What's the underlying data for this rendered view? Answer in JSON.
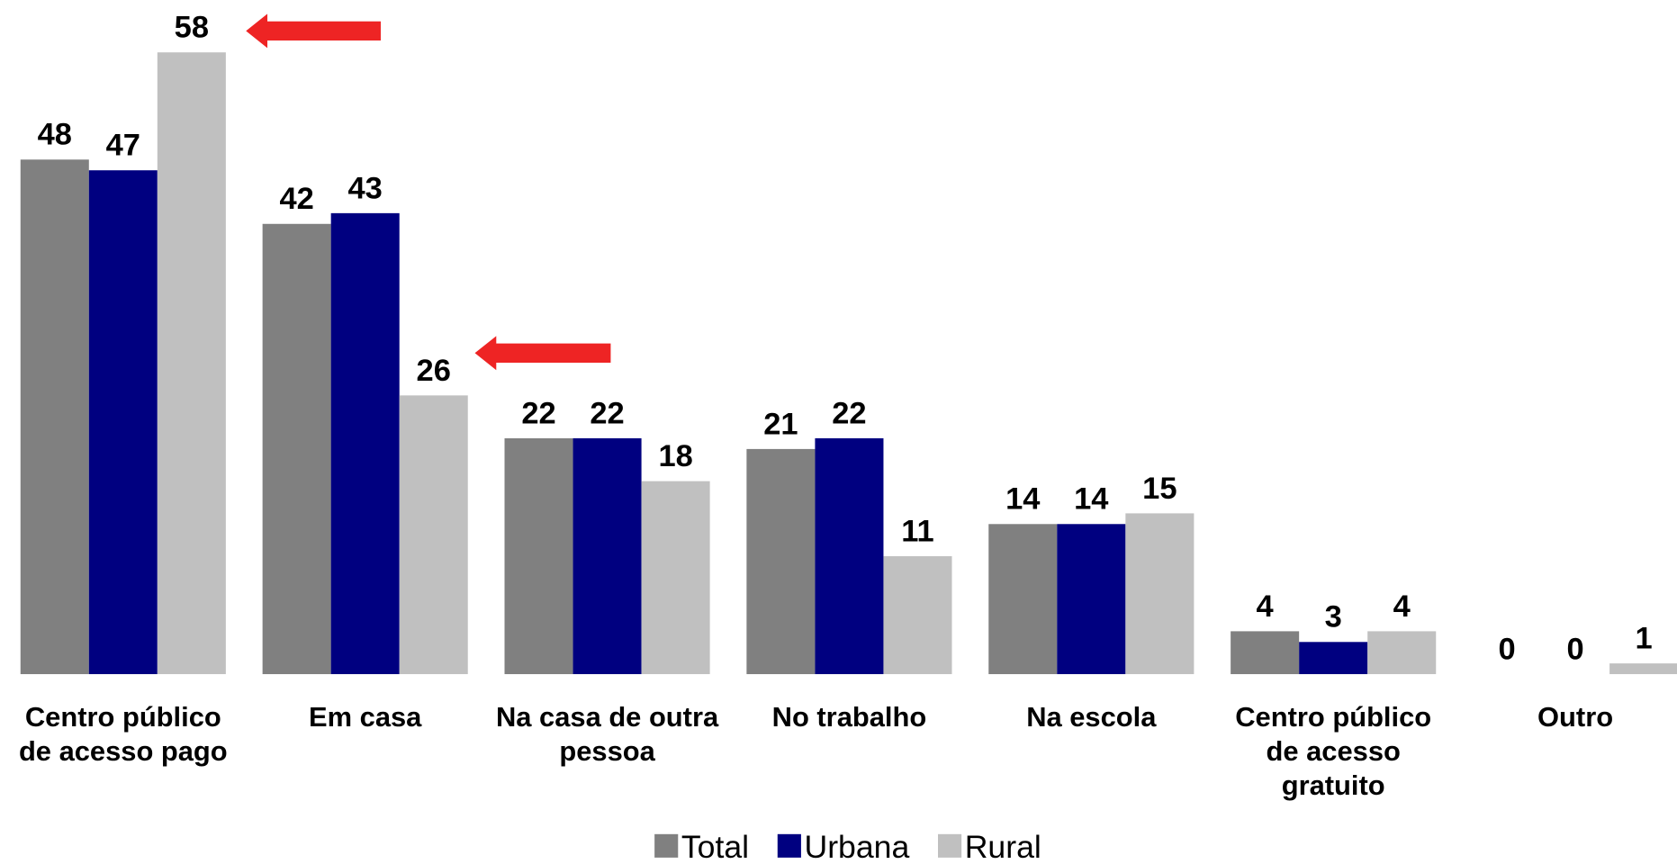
{
  "chart_data": {
    "type": "bar",
    "categories": [
      "Centro público\nde acesso pago",
      "Em casa",
      "Na casa de outra\npessoa",
      "No trabalho",
      "Na escola",
      "Centro público\nde acesso\ngratuito",
      "Outro"
    ],
    "series": [
      {
        "name": "Total",
        "color": "#808080",
        "values": [
          48,
          42,
          22,
          21,
          14,
          4,
          0
        ]
      },
      {
        "name": "Urbana",
        "color": "#000080",
        "values": [
          47,
          43,
          22,
          22,
          14,
          3,
          0
        ]
      },
      {
        "name": "Rural",
        "color": "#c0c0c0",
        "values": [
          58,
          26,
          18,
          11,
          15,
          4,
          1
        ]
      }
    ],
    "ylim": [
      0,
      60
    ],
    "legend": "bottom"
  }
}
